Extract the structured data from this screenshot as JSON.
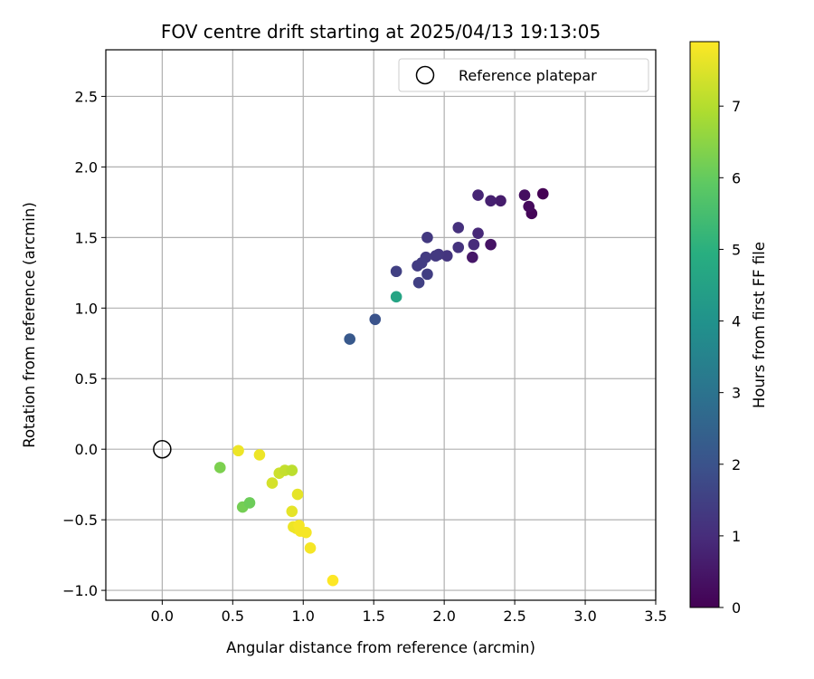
{
  "chart_data": {
    "type": "scatter",
    "title": "FOV centre drift starting at 2025/04/13 19:13:05",
    "xlabel": "Angular distance from reference (arcmin)",
    "ylabel": "Rotation from reference (arcmin)",
    "xlim": [
      -0.4,
      3.5
    ],
    "ylim": [
      -1.07,
      2.83
    ],
    "x_ticks": [
      "0.0",
      "0.5",
      "1.0",
      "1.5",
      "2.0",
      "2.5",
      "3.0",
      "3.5"
    ],
    "y_ticks": [
      "−1.0",
      "−0.5",
      "0.0",
      "0.5",
      "1.0",
      "1.5",
      "2.0",
      "2.5"
    ],
    "grid": true,
    "legend": {
      "placement": "top-right",
      "entries": [
        {
          "label": "Reference platepar",
          "marker": "open-circle"
        }
      ]
    },
    "reference_point": {
      "x": 0.0,
      "y": 0.0
    },
    "colorbar": {
      "label": "Hours from first FF file",
      "colormap": "viridis",
      "range": [
        0,
        7.9
      ],
      "ticks": [
        "0",
        "1",
        "2",
        "3",
        "4",
        "5",
        "6",
        "7"
      ]
    },
    "points": [
      {
        "x": 2.7,
        "y": 1.81,
        "c": 0.0
      },
      {
        "x": 2.62,
        "y": 1.67,
        "c": 0.1
      },
      {
        "x": 2.6,
        "y": 1.72,
        "c": 0.2
      },
      {
        "x": 2.57,
        "y": 1.8,
        "c": 0.3
      },
      {
        "x": 2.33,
        "y": 1.45,
        "c": 0.4
      },
      {
        "x": 2.2,
        "y": 1.36,
        "c": 0.5
      },
      {
        "x": 2.4,
        "y": 1.76,
        "c": 0.6
      },
      {
        "x": 2.33,
        "y": 1.76,
        "c": 0.7
      },
      {
        "x": 2.24,
        "y": 1.8,
        "c": 0.8
      },
      {
        "x": 2.24,
        "y": 1.53,
        "c": 0.9
      },
      {
        "x": 2.21,
        "y": 1.45,
        "c": 1.0
      },
      {
        "x": 2.1,
        "y": 1.57,
        "c": 1.1
      },
      {
        "x": 2.1,
        "y": 1.43,
        "c": 1.15
      },
      {
        "x": 2.02,
        "y": 1.37,
        "c": 1.2
      },
      {
        "x": 1.96,
        "y": 1.38,
        "c": 1.25
      },
      {
        "x": 1.94,
        "y": 1.37,
        "c": 1.3
      },
      {
        "x": 1.88,
        "y": 1.5,
        "c": 1.3
      },
      {
        "x": 1.87,
        "y": 1.36,
        "c": 1.35
      },
      {
        "x": 1.84,
        "y": 1.32,
        "c": 1.4
      },
      {
        "x": 1.81,
        "y": 1.3,
        "c": 1.4
      },
      {
        "x": 1.88,
        "y": 1.24,
        "c": 1.45
      },
      {
        "x": 1.82,
        "y": 1.18,
        "c": 1.5
      },
      {
        "x": 1.66,
        "y": 1.26,
        "c": 1.5
      },
      {
        "x": 1.51,
        "y": 0.92,
        "c": 2.0
      },
      {
        "x": 1.33,
        "y": 0.78,
        "c": 2.2
      },
      {
        "x": 1.66,
        "y": 1.08,
        "c": 4.6
      },
      {
        "x": 0.41,
        "y": -0.13,
        "c": 6.3
      },
      {
        "x": 0.57,
        "y": -0.41,
        "c": 6.2
      },
      {
        "x": 0.62,
        "y": -0.38,
        "c": 6.1
      },
      {
        "x": 0.54,
        "y": -0.01,
        "c": 7.7
      },
      {
        "x": 0.69,
        "y": -0.04,
        "c": 7.7
      },
      {
        "x": 0.78,
        "y": -0.24,
        "c": 7.4
      },
      {
        "x": 0.83,
        "y": -0.17,
        "c": 7.3
      },
      {
        "x": 0.87,
        "y": -0.15,
        "c": 7.2
      },
      {
        "x": 0.92,
        "y": -0.15,
        "c": 7.1
      },
      {
        "x": 0.96,
        "y": -0.32,
        "c": 7.6
      },
      {
        "x": 0.92,
        "y": -0.44,
        "c": 7.6
      },
      {
        "x": 0.93,
        "y": -0.55,
        "c": 7.7
      },
      {
        "x": 0.95,
        "y": -0.56,
        "c": 7.7
      },
      {
        "x": 0.97,
        "y": -0.54,
        "c": 7.8
      },
      {
        "x": 0.98,
        "y": -0.58,
        "c": 7.8
      },
      {
        "x": 1.02,
        "y": -0.59,
        "c": 7.8
      },
      {
        "x": 1.05,
        "y": -0.7,
        "c": 7.8
      },
      {
        "x": 1.21,
        "y": -0.93,
        "c": 7.9
      }
    ]
  }
}
